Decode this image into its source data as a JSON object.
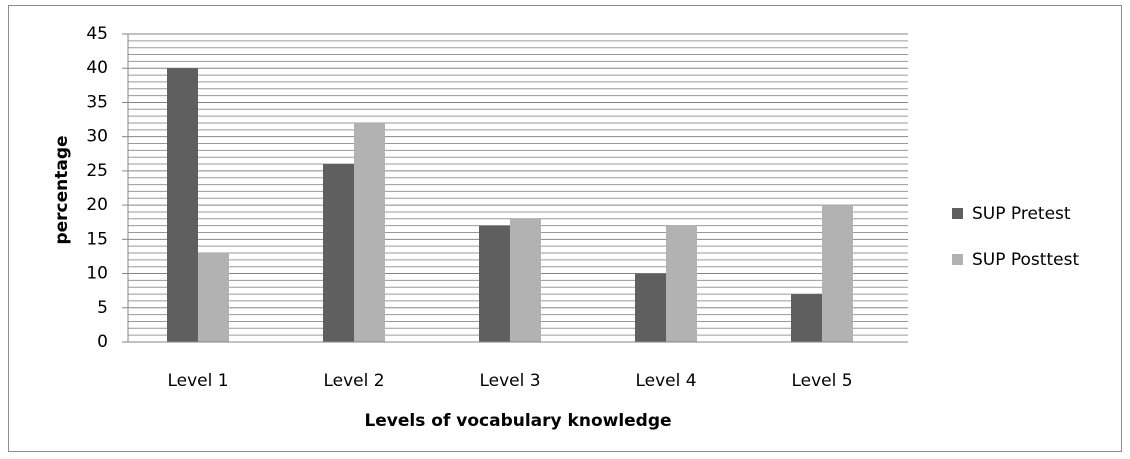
{
  "chart_data": {
    "type": "bar",
    "y_label": "percentage",
    "x_label": "Levels of vocabulary  knowledge",
    "categories": [
      "Level 1",
      "Level 2",
      "Level 3",
      "Level 4",
      "Level 5"
    ],
    "series": [
      {
        "name": "SUP Pretest",
        "color": "#5f5f5f",
        "values": [
          40,
          26,
          17,
          10,
          7
        ]
      },
      {
        "name": "SUP Posttest",
        "color": "#b2b2b2",
        "values": [
          13,
          32,
          18,
          17,
          20
        ]
      }
    ],
    "ylim": [
      0,
      45
    ],
    "yticks": [
      0,
      5,
      10,
      15,
      20,
      25,
      30,
      35,
      40,
      45
    ],
    "grid": true,
    "legend": "right"
  }
}
